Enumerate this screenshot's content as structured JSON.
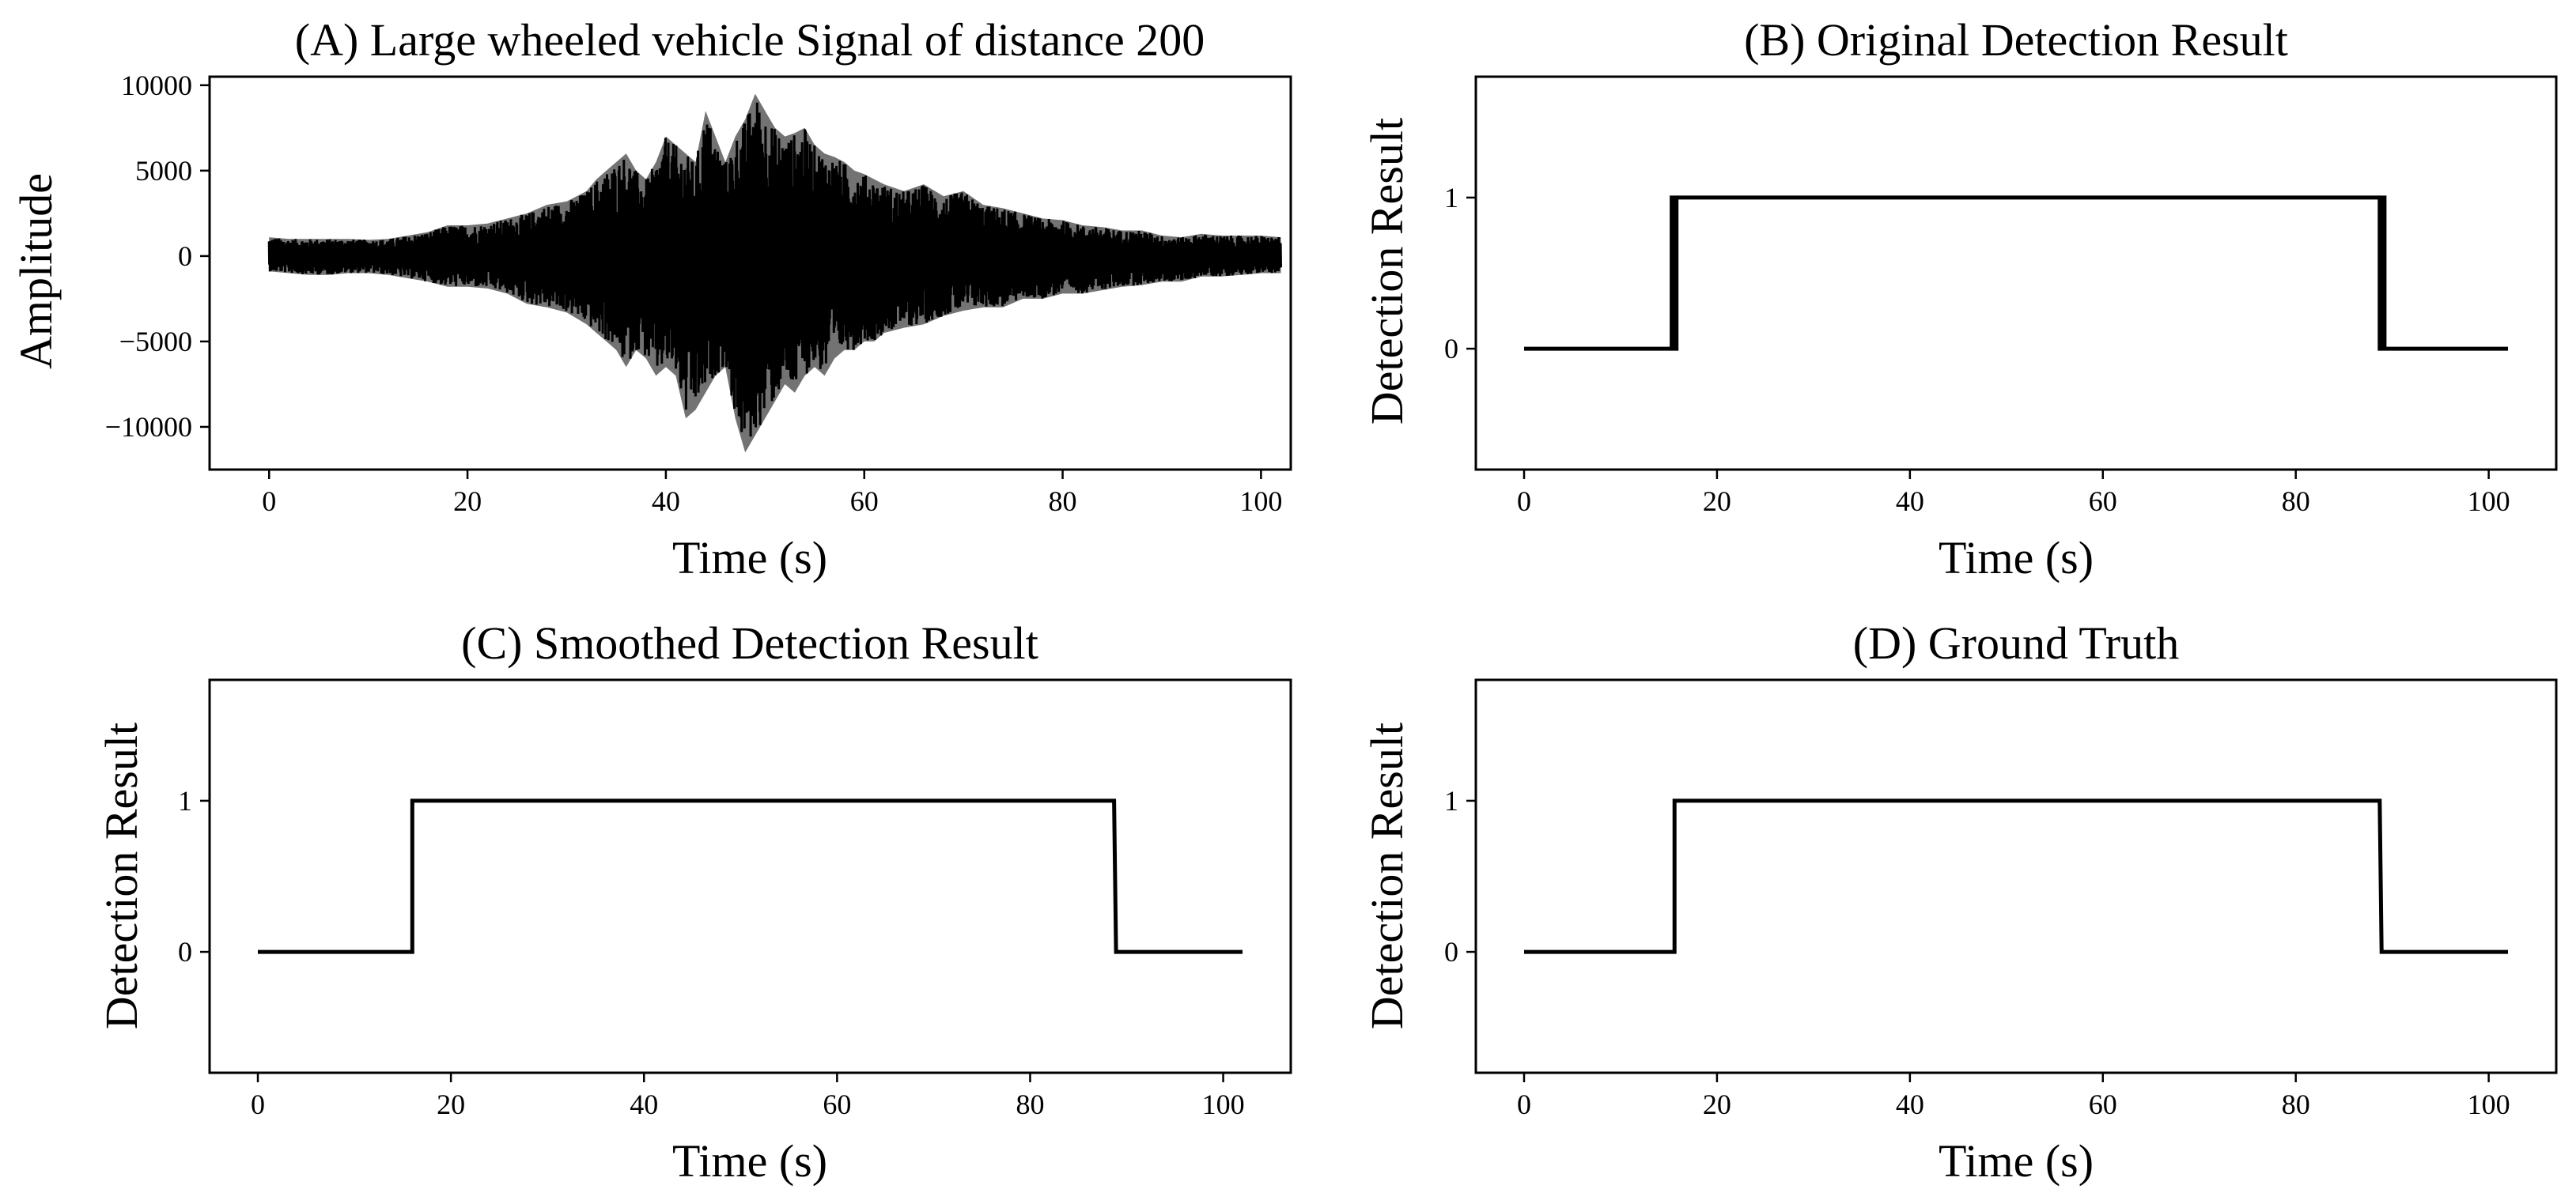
{
  "chart_data": [
    {
      "type": "line",
      "title": "(A) Large wheeled vehicle Signal of distance 200",
      "xlabel": "Time (s)",
      "ylabel": "Amplitude",
      "xlim": [
        -6,
        103
      ],
      "ylim": [
        -12500,
        10500
      ],
      "xticks": [
        0,
        20,
        40,
        60,
        80,
        100
      ],
      "yticks": [
        -10000,
        -5000,
        0,
        5000,
        10000
      ],
      "grid": false,
      "series": [
        {
          "style": "dense-signal",
          "color": "#000000",
          "x": [
            0,
            2,
            4,
            6,
            8,
            10,
            12,
            14,
            16,
            18,
            20,
            22,
            24,
            26,
            28,
            30,
            32,
            33,
            34,
            35,
            36,
            37,
            38,
            39,
            40,
            41,
            42,
            43,
            44,
            45,
            46,
            47,
            48,
            49,
            50,
            51,
            52,
            53,
            54,
            55,
            56,
            57,
            58,
            59,
            60,
            61,
            62,
            64,
            66,
            68,
            70,
            72,
            74,
            76,
            78,
            80,
            82,
            84,
            86,
            88,
            90,
            92,
            94,
            96,
            98,
            100,
            102
          ],
          "upper": [
            1100,
            1000,
            1000,
            1000,
            1000,
            950,
            1000,
            1200,
            1400,
            1800,
            1800,
            1900,
            2200,
            2500,
            3000,
            3200,
            3800,
            4500,
            5000,
            5500,
            6000,
            5000,
            4500,
            5500,
            7000,
            6500,
            6000,
            5500,
            8500,
            7000,
            5500,
            7000,
            8000,
            9500,
            8500,
            7500,
            7000,
            7200,
            7500,
            6500,
            6000,
            5800,
            5500,
            5000,
            4800,
            4500,
            4200,
            3800,
            4200,
            3500,
            3800,
            3000,
            2800,
            2500,
            2200,
            2100,
            1800,
            1700,
            1500,
            1500,
            1200,
            1100,
            1300,
            1200,
            1200,
            1200,
            1100
          ],
          "lower": [
            -900,
            -1000,
            -1100,
            -1100,
            -1000,
            -1000,
            -1100,
            -1300,
            -1500,
            -1800,
            -1800,
            -1900,
            -2200,
            -2800,
            -3000,
            -3300,
            -4000,
            -4500,
            -5000,
            -5500,
            -6500,
            -5500,
            -6000,
            -7000,
            -6500,
            -7000,
            -9500,
            -9000,
            -8000,
            -7000,
            -6500,
            -9500,
            -11500,
            -10500,
            -9500,
            -8500,
            -7500,
            -8000,
            -7000,
            -6500,
            -7000,
            -6000,
            -5500,
            -5500,
            -5000,
            -5000,
            -4500,
            -4200,
            -4000,
            -3500,
            -3200,
            -3000,
            -3000,
            -2500,
            -2500,
            -2200,
            -2200,
            -2000,
            -1800,
            -1700,
            -1500,
            -1500,
            -1200,
            -1200,
            -1100,
            -1000,
            -1000
          ]
        }
      ]
    },
    {
      "type": "line",
      "title": "(B) Original Detection Result",
      "xlabel": "Time (s)",
      "ylabel": "Detection Result",
      "xlim": [
        -5,
        107
      ],
      "ylim": [
        -0.8,
        1.8
      ],
      "xticks": [
        0,
        20,
        40,
        60,
        80,
        100
      ],
      "yticks": [
        0,
        1
      ],
      "grid": false,
      "series": [
        {
          "color": "#000000",
          "x": [
            0,
            15.3,
            15.3,
            15.5,
            15.5,
            15.8,
            15.8,
            88.7,
            88.7,
            88.9,
            88.9,
            89.2,
            89.2,
            89.4,
            89.4,
            102
          ],
          "y": [
            0,
            0,
            1,
            1,
            0,
            0,
            1,
            1,
            0,
            0,
            1,
            1,
            0,
            0,
            0,
            0
          ]
        }
      ]
    },
    {
      "type": "line",
      "title": "(C) Smoothed Detection Result",
      "xlabel": "Time (s)",
      "ylabel": "Detection Result",
      "xlim": [
        -5,
        107
      ],
      "ylim": [
        -0.8,
        1.8
      ],
      "xticks": [
        0,
        20,
        40,
        60,
        80,
        100
      ],
      "yticks": [
        0,
        1
      ],
      "grid": false,
      "series": [
        {
          "color": "#000000",
          "x": [
            0,
            16,
            16,
            88.7,
            88.9,
            102
          ],
          "y": [
            0,
            0,
            1,
            1,
            0,
            0
          ]
        }
      ]
    },
    {
      "type": "line",
      "title": "(D) Ground Truth",
      "xlabel": "Time (s)",
      "ylabel": "Detection Result",
      "xlim": [
        -5,
        107
      ],
      "ylim": [
        -0.8,
        1.8
      ],
      "xticks": [
        0,
        20,
        40,
        60,
        80,
        100
      ],
      "yticks": [
        0,
        1
      ],
      "grid": false,
      "series": [
        {
          "color": "#000000",
          "x": [
            0,
            15.6,
            15.6,
            88.7,
            88.9,
            102
          ],
          "y": [
            0,
            0,
            1,
            1,
            0,
            0
          ]
        }
      ]
    }
  ]
}
